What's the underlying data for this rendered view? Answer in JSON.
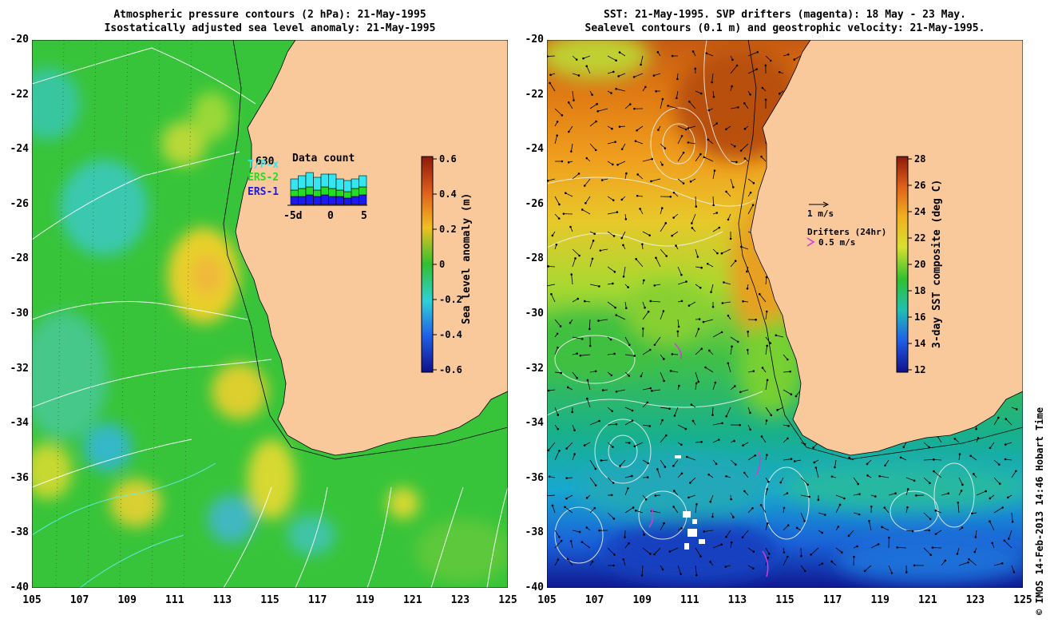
{
  "left_panel": {
    "title_line1": "Atmospheric pressure contours (2 hPa): 21-May-1995",
    "title_line2": "Isostatically adjusted sea level anomaly: 21-May-1995",
    "colorbar": {
      "label": "Sea level anomaly (m)",
      "ticks": [
        "0.6",
        "0.4",
        "0.2",
        "0",
        "-0.2",
        "-0.4",
        "-0.6"
      ]
    },
    "data_count": {
      "title": "Data count",
      "total": "630",
      "legend": [
        {
          "name": "T/P-x",
          "color": "#33e6f0"
        },
        {
          "name": "ERS-2",
          "color": "#22dd22"
        },
        {
          "name": "ERS-1",
          "color": "#1a1aee"
        }
      ],
      "axis_labels": [
        "-5d",
        "0",
        "5"
      ]
    }
  },
  "right_panel": {
    "title_line1": "SST: 21-May-1995. SVP drifters (magenta): 18 May - 23 May.",
    "title_line2": "Sealevel contours (0.1 m) and geostrophic velocity: 21-May-1995.",
    "colorbar": {
      "label": "3-day SST composite (deg C)",
      "ticks": [
        "28",
        "26",
        "24",
        "22",
        "20",
        "18",
        "16",
        "14",
        "12"
      ]
    },
    "velocity_scale": "1 m/s",
    "drifters_label": "Drifters (24hr)",
    "drifter_scale": "0.5 m/s"
  },
  "axes": {
    "lat_labels": [
      "-20",
      "-22",
      "-24",
      "-26",
      "-28",
      "-30",
      "-32",
      "-34",
      "-36",
      "-38",
      "-40"
    ],
    "lon_labels": [
      "105",
      "107",
      "109",
      "111",
      "113",
      "115",
      "117",
      "119",
      "121",
      "123",
      "125"
    ]
  },
  "credit": "© IMOS 14-Feb-2013 14:46 Hobart Time",
  "colors": {
    "land": "#f9c89b",
    "sla_background": "#37c537",
    "sst_background": "#8fd12a",
    "sst_warm": "#c45a0a",
    "sst_cold": "#1e6ee6"
  }
}
